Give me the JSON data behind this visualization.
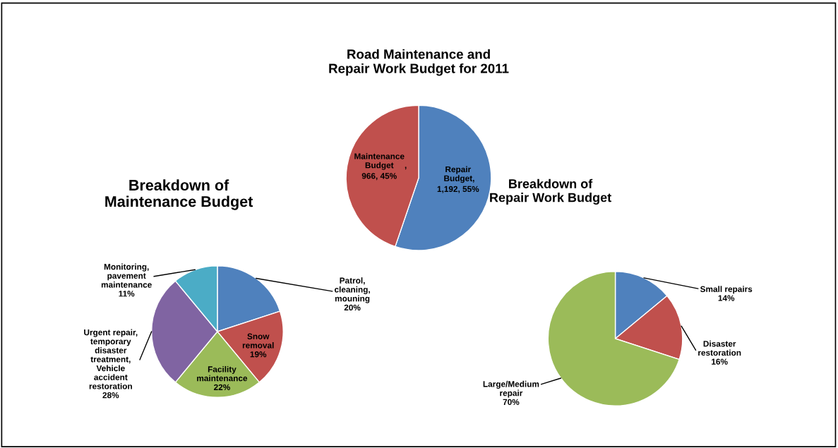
{
  "chart_data": [
    {
      "type": "pie",
      "title": "Road Maintenance and\nRepair Work Budget for 2011",
      "categories": [
        "Repair\nBudget",
        "Maintenance\nBudget"
      ],
      "values": [
        1192,
        966
      ],
      "colors": [
        "#4f81bd",
        "#c0504d"
      ],
      "value_labels": [
        ",\n1,192, 55%",
        ",\n966, 45%"
      ]
    },
    {
      "type": "pie",
      "title": "Breakdown of\nMaintenance Budget",
      "categories": [
        "Patrol,\ncleaning,\nmouning",
        "Snow\nremoval",
        "Facility\nmaintenance",
        "Urgent repair,\ntemporary\ndisaster\ntreatment,\nVehicle\naccident\nrestoration",
        "Monitoring,\npavement\nmaintenance"
      ],
      "values": [
        20,
        19,
        22,
        28,
        11
      ],
      "colors": [
        "#4f81bd",
        "#c0504d",
        "#9bbb59",
        "#8064a2",
        "#4bacc6"
      ],
      "value_labels": [
        "20%",
        "19%",
        "22%",
        "28%",
        "11%"
      ]
    },
    {
      "type": "pie",
      "title": "Breakdown of\nRepair Work Budget",
      "categories": [
        "Small repairs",
        "Disaster\nrestoration",
        "Large/Medium\nrepair"
      ],
      "values": [
        14,
        16,
        70
      ],
      "colors": [
        "#4f81bd",
        "#c0504d",
        "#9bbb59"
      ],
      "value_labels": [
        "14%",
        "16%",
        "70%"
      ]
    }
  ]
}
